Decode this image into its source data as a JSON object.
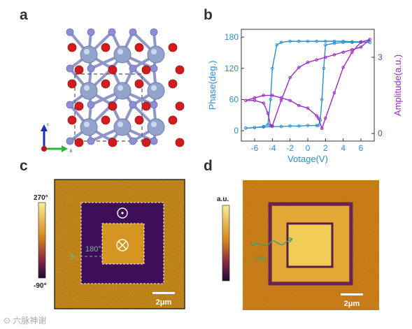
{
  "panels": {
    "a": {
      "letter": "a",
      "axes": {
        "c": "c",
        "b": "b"
      }
    },
    "b": {
      "letter": "b"
    },
    "c": {
      "letter": "c",
      "scale_top": "270°",
      "scale_bottom": "-90°",
      "annotation": "180°",
      "scalebar": "2μm"
    },
    "d": {
      "letter": "d",
      "scale_top": "a.u.",
      "annotation": "DW",
      "scalebar": "2μm"
    }
  },
  "watermark": "六脉神谢",
  "colors": {
    "phase": "#2b8fcf",
    "amplitude": "#9b27c9",
    "map_high": "#f6e58f",
    "map_mid": "#d08a1a",
    "map_low": "#3a0a55"
  },
  "chart_data": {
    "type": "line",
    "xlabel": "Votage(V)",
    "ylabel": "Phase(deg.)",
    "y2label": "Amplitude(a.u.)",
    "xlim": [
      -7.5,
      7.5
    ],
    "ylim": [
      -20,
      195
    ],
    "y2lim": [
      -0.3,
      4.1
    ],
    "xticks": [
      -6,
      -4,
      -2,
      0,
      2,
      4,
      6
    ],
    "yticks": [
      0,
      60,
      120,
      180
    ],
    "y2ticks": [
      0,
      3
    ],
    "series": [
      {
        "axis": "y",
        "x": [
          -7,
          -6,
          -5,
          -4.5,
          -4.2,
          -4,
          -3.5,
          -3,
          -2,
          -1,
          0,
          1,
          2,
          3,
          4,
          5,
          6,
          7
        ],
        "y": [
          5,
          6,
          8,
          12,
          60,
          120,
          165,
          170,
          172,
          172,
          172,
          172,
          172,
          172,
          172,
          171,
          171,
          170
        ]
      },
      {
        "axis": "y",
        "x": [
          7,
          6,
          5,
          4,
          3,
          2,
          1.8,
          1.6,
          1.4,
          1.2,
          1,
          0,
          -1,
          -2,
          -3,
          -4,
          -5,
          -6,
          -7
        ],
        "y": [
          170,
          170,
          170,
          170,
          168,
          165,
          120,
          60,
          20,
          10,
          10,
          10,
          9,
          9,
          8,
          8,
          7,
          6,
          5
        ]
      },
      {
        "axis": "y2",
        "x": [
          -7,
          -6,
          -5,
          -4.5,
          -4.2,
          -4,
          -3,
          -2,
          -1,
          0,
          1,
          2,
          3,
          4,
          5,
          6,
          7
        ],
        "y": [
          1.3,
          1.3,
          1.2,
          0.8,
          0.3,
          0.3,
          1.3,
          2.2,
          2.6,
          2.8,
          2.9,
          3.0,
          3.1,
          3.2,
          3.3,
          3.4,
          3.7
        ]
      },
      {
        "axis": "y2",
        "x": [
          7,
          6,
          5,
          4,
          3,
          2,
          1.6,
          1.2,
          1,
          0,
          -1,
          -2,
          -3,
          -4,
          -5,
          -6,
          -7
        ],
        "y": [
          3.7,
          3.6,
          3.2,
          2.6,
          1.6,
          0.6,
          0.2,
          0.6,
          0.7,
          1.0,
          1.1,
          1.3,
          1.4,
          1.5,
          1.5,
          1.4,
          1.3
        ]
      }
    ]
  }
}
